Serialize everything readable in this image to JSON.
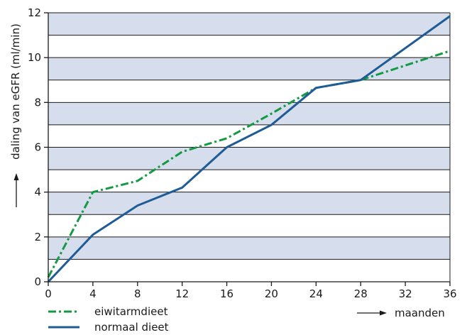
{
  "chart_data": {
    "type": "line",
    "ylabel": "daling van eGFR (ml/min)",
    "xlabel": "maanden",
    "xlim": [
      0,
      36
    ],
    "ylim": [
      0,
      12
    ],
    "x_ticks": [
      "0",
      "4",
      "8",
      "12",
      "16",
      "20",
      "24",
      "28",
      "32",
      "36"
    ],
    "y_ticks": [
      "0",
      "2",
      "4",
      "6",
      "8",
      "10",
      "12"
    ],
    "grid": "horizontal bands",
    "legend_position": "bottom-left",
    "colors": {
      "band": "#d6dded",
      "grid": "#1a1a1a",
      "axis": "#1a1a1a",
      "eiwitarmdieet": "#139a43",
      "normaal_dieet": "#1f5c96"
    },
    "series": [
      {
        "name": "eiwitarmdieet",
        "style": "dash-dot",
        "x": [
          0,
          4,
          8,
          12,
          16,
          20,
          24,
          28,
          36
        ],
        "values": [
          0.2,
          4.0,
          4.5,
          5.8,
          6.4,
          7.5,
          8.65,
          9.0,
          10.3
        ]
      },
      {
        "name": "normaal dieet",
        "style": "solid",
        "x": [
          0,
          4,
          8,
          12,
          16,
          20,
          24,
          28,
          36
        ],
        "values": [
          0.0,
          2.1,
          3.4,
          4.2,
          6.0,
          7.0,
          8.65,
          9.0,
          11.85
        ]
      }
    ]
  }
}
